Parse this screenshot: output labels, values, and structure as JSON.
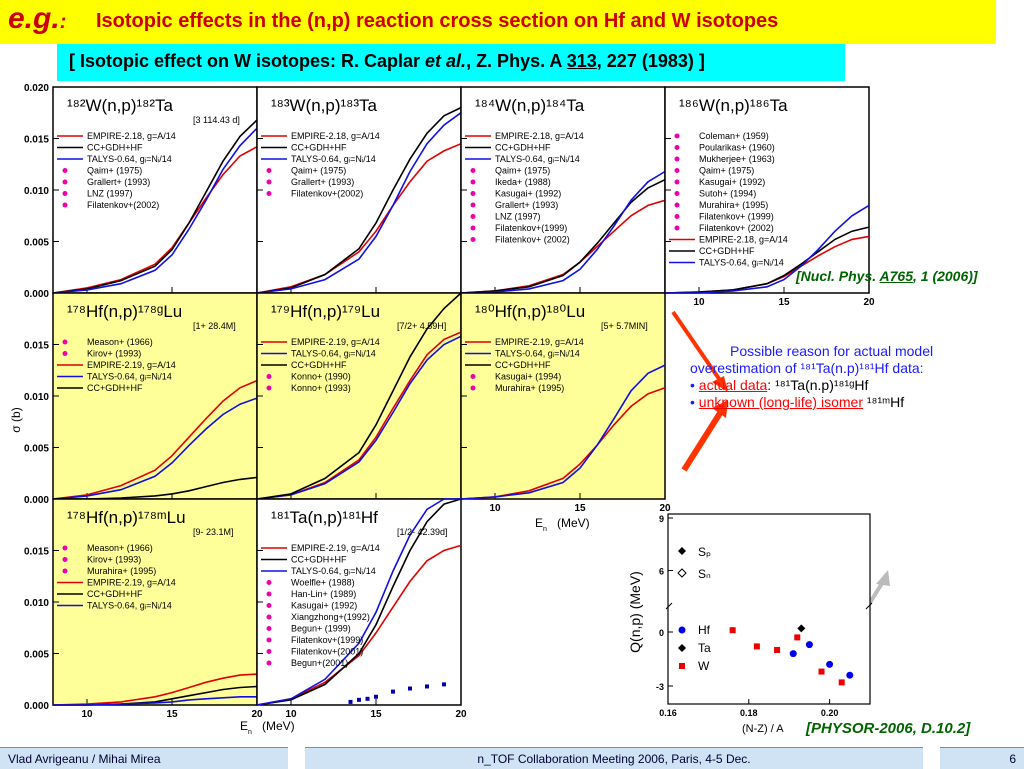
{
  "title": {
    "prefix": "e.g.",
    "colon": ":",
    "text": "Isotopic effects in the (n,p) reaction cross section on Hf and W isotopes"
  },
  "subtitle": {
    "pre": "[ Isotopic effect on W isotopes: R. Caplar ",
    "italic": "et al.",
    "mid": ", Z. Phys. A ",
    "vol": "313",
    "post": ", 227 (1983) ]"
  },
  "notes": {
    "nucl_pre": "[",
    "nucl_mid": "Nucl. Phys. ",
    "nucl_vol": "A765",
    "nucl_post": ", 1 (2006)]",
    "physor": "[PHYSOR-2006, D.10.2]"
  },
  "explanation": {
    "line1": "Possible reason for actual model",
    "line2": "overestimation of ¹⁸¹Ta(n.p)¹⁸¹Hf data:",
    "bullet1_red": "actual data",
    "bullet1_rest": ": ¹⁸¹Ta(n.p)¹⁸¹ᵍHf",
    "bullet2_red": "unknown (long-life) isomer",
    "bullet2_rest": " ¹⁸¹ᵐHf"
  },
  "footer": {
    "left": "Vlad Avrigeanu / Mihai Mirea",
    "center": "n_TOF Collaboration Meeting 2006, Paris, 4-5 Dec.",
    "page": "6"
  },
  "colors": {
    "empire": "#e00000",
    "cc": "#000000",
    "talys": "#1010e0",
    "yellow_panel": "#ffff99",
    "arrow_red": "#ff3300",
    "arrow_gray": "#bbbbbb"
  },
  "axes": {
    "y_ticks": [
      "0.000",
      "0.005",
      "0.010",
      "0.015",
      "0.020"
    ],
    "x_ticks": [
      "10",
      "15",
      "20"
    ],
    "xlabel": "E",
    "xlabel_sub": "n",
    "xlabel_unit": "(MeV)",
    "ylabel": "σ  (b)"
  },
  "chart_data": [
    {
      "type": "line",
      "id": "W182",
      "title": "¹⁸²W(n,p)¹⁸²Ta",
      "halflife": "[3    114.43 d]",
      "x_range": [
        8,
        20
      ],
      "y_range": [
        0,
        0.02
      ],
      "legend": [
        "EMPIRE-2.18, g=A/14",
        "CC+GDH+HF",
        "TALYS-0.64, gᵢ=Nᵢ/14",
        "Qaim+ (1975)",
        "Grallert+ (1993)",
        "LNZ (1997)",
        "Filatenkov+(2002)"
      ],
      "series": [
        {
          "name": "EMPIRE-2.18, g=A/14",
          "x": [
            8,
            10,
            12,
            14,
            15,
            16,
            17,
            18,
            19,
            20
          ],
          "y": [
            0,
            0.0005,
            0.0013,
            0.0028,
            0.0044,
            0.0068,
            0.0092,
            0.0115,
            0.0133,
            0.0142
          ]
        },
        {
          "name": "CC+GDH+HF",
          "x": [
            8,
            10,
            12,
            14,
            15,
            16,
            17,
            18,
            19,
            20
          ],
          "y": [
            0,
            0.0004,
            0.0012,
            0.0026,
            0.0042,
            0.0068,
            0.0098,
            0.0128,
            0.0152,
            0.0168
          ]
        },
        {
          "name": "TALYS-0.64, gᵢ=Nᵢ/14",
          "x": [
            8,
            10,
            12,
            14,
            15,
            16,
            17,
            18,
            19,
            20
          ],
          "y": [
            0,
            0.0003,
            0.0009,
            0.0022,
            0.0037,
            0.0062,
            0.009,
            0.012,
            0.0143,
            0.016
          ]
        }
      ]
    },
    {
      "type": "line",
      "id": "W183",
      "title": "¹⁸³W(n,p)¹⁸³Ta",
      "x_range": [
        8,
        20
      ],
      "y_range": [
        0,
        0.02
      ],
      "legend": [
        "EMPIRE-2.18, g=A/14",
        "CC+GDH+HF",
        "TALYS-0.64, gᵢ=Nᵢ/14",
        "Qaim+ (1975)",
        "Grallert+ (1993)",
        "Filatenkov+(2002)"
      ],
      "series": [
        {
          "name": "EMPIRE-2.18, g=A/14",
          "x": [
            8,
            10,
            12,
            14,
            15,
            16,
            17,
            18,
            19,
            20
          ],
          "y": [
            0,
            0.0006,
            0.0018,
            0.004,
            0.006,
            0.0085,
            0.0108,
            0.0128,
            0.0138,
            0.0145
          ]
        },
        {
          "name": "CC+GDH+HF",
          "x": [
            8,
            10,
            12,
            14,
            15,
            16,
            17,
            18,
            19,
            20
          ],
          "y": [
            0,
            0.0005,
            0.0018,
            0.0043,
            0.0068,
            0.01,
            0.013,
            0.0155,
            0.0172,
            0.018
          ]
        },
        {
          "name": "TALYS-0.64, gᵢ=Nᵢ/14",
          "x": [
            8,
            10,
            12,
            14,
            15,
            16,
            17,
            18,
            19,
            20
          ],
          "y": [
            0,
            0.0004,
            0.0013,
            0.0033,
            0.0055,
            0.0085,
            0.0118,
            0.0145,
            0.0163,
            0.0175
          ]
        }
      ]
    },
    {
      "type": "line",
      "id": "W184",
      "title": "¹⁸⁴W(n,p)¹⁸⁴Ta",
      "x_range": [
        8,
        20
      ],
      "y_range": [
        0,
        0.02
      ],
      "legend": [
        "EMPIRE-2.18, g=A/14",
        "CC+GDH+HF",
        "TALYS-0.64, gᵢ=Nᵢ/14",
        "Qaim+ (1975)",
        "Ikeda+ (1988)",
        "Kasugai+ (1992)",
        "Grallert+ (1993)",
        "LNZ (1997)",
        "Filatenkov+(1999)",
        "Filatenkov+ (2002)"
      ],
      "series": [
        {
          "name": "EMPIRE-2.18, g=A/14",
          "x": [
            8,
            10,
            12,
            14,
            15,
            16,
            17,
            18,
            19,
            20
          ],
          "y": [
            0,
            0.0002,
            0.0007,
            0.0018,
            0.003,
            0.0045,
            0.006,
            0.0075,
            0.0085,
            0.009
          ]
        },
        {
          "name": "CC+GDH+HF",
          "x": [
            8,
            10,
            12,
            14,
            15,
            16,
            17,
            18,
            19,
            20
          ],
          "y": [
            0,
            0.0002,
            0.0006,
            0.0017,
            0.003,
            0.0048,
            0.0068,
            0.0088,
            0.0102,
            0.011
          ]
        },
        {
          "name": "TALYS-0.64, gᵢ=Nᵢ/14",
          "x": [
            8,
            10,
            12,
            14,
            15,
            16,
            17,
            18,
            19,
            20
          ],
          "y": [
            0,
            0.0001,
            0.0004,
            0.0012,
            0.0023,
            0.0042,
            0.0065,
            0.009,
            0.0108,
            0.0118
          ]
        }
      ]
    },
    {
      "type": "line",
      "id": "W186",
      "title": "¹⁸⁶W(n,p)¹⁸⁶Ta",
      "x_range": [
        8,
        20
      ],
      "y_range": [
        0,
        0.02
      ],
      "legend": [
        "Coleman+ (1959)",
        "Poularikas+ (1960)",
        "Mukherjee+ (1963)",
        "Qaim+ (1975)",
        "Kasugai+ (1992)",
        "Sutoh+ (1994)",
        "Murahira+ (1995)",
        "Filatenkov+ (1999)",
        "Filatenkov+ (2002)",
        "EMPIRE-2.18, g=A/14",
        "CC+GDH+HF",
        "TALYS-0.64, gᵢ=Nᵢ/14"
      ],
      "series": [
        {
          "name": "EMPIRE-2.18, g=A/14",
          "x": [
            8,
            10,
            12,
            14,
            15,
            16,
            17,
            18,
            19,
            20
          ],
          "y": [
            0,
            0.0001,
            0.0003,
            0.0009,
            0.0016,
            0.0026,
            0.0036,
            0.0045,
            0.0052,
            0.0055
          ]
        },
        {
          "name": "CC+GDH+HF",
          "x": [
            8,
            10,
            12,
            14,
            15,
            16,
            17,
            18,
            19,
            20
          ],
          "y": [
            0,
            0.0001,
            0.0003,
            0.0009,
            0.0017,
            0.0028,
            0.004,
            0.0052,
            0.006,
            0.0064
          ]
        },
        {
          "name": "TALYS-0.64, gᵢ=Nᵢ/14",
          "x": [
            8,
            10,
            12,
            14,
            15,
            16,
            17,
            18,
            19,
            20
          ],
          "y": [
            0,
            0.0,
            0.0002,
            0.0006,
            0.0013,
            0.0026,
            0.0042,
            0.006,
            0.0075,
            0.0085
          ]
        }
      ]
    },
    {
      "type": "line",
      "id": "Hf178g",
      "title": "¹⁷⁸Hf(n,p)¹⁷⁸ᵍLu",
      "halflife": "[1+  28.4M]",
      "x_range": [
        8,
        20
      ],
      "y_range": [
        0,
        0.02
      ],
      "legend": [
        "Meason+ (1966)",
        "Kirov+ (1993)",
        "EMPIRE-2.19, g=A/14",
        "TALYS-0.64, gᵢ=Nᵢ/14",
        "CC+GDH+HF"
      ],
      "series": [
        {
          "name": "EMPIRE-2.19, g=A/14",
          "x": [
            8,
            10,
            12,
            14,
            15,
            16,
            17,
            18,
            19,
            20
          ],
          "y": [
            0,
            0.0004,
            0.0013,
            0.0028,
            0.0042,
            0.006,
            0.0078,
            0.0095,
            0.0108,
            0.0115
          ]
        },
        {
          "name": "TALYS-0.64, gᵢ=Nᵢ/14",
          "x": [
            8,
            10,
            12,
            14,
            15,
            16,
            17,
            18,
            19,
            20
          ],
          "y": [
            0,
            0.0003,
            0.0009,
            0.0022,
            0.0035,
            0.0052,
            0.0068,
            0.0082,
            0.0092,
            0.0098
          ]
        },
        {
          "name": "CC+GDH+HF",
          "x": [
            8,
            10,
            12,
            14,
            15,
            16,
            17,
            18,
            19,
            20
          ],
          "y": [
            0,
            0.0,
            0.0001,
            0.0003,
            0.0005,
            0.0008,
            0.0012,
            0.0016,
            0.0019,
            0.0021
          ]
        }
      ]
    },
    {
      "type": "line",
      "id": "Hf179",
      "title": "¹⁷⁹Hf(n,p)¹⁷⁹Lu",
      "halflife": "[7/2+  4.59H]",
      "x_range": [
        8,
        20
      ],
      "y_range": [
        0,
        0.02
      ],
      "legend": [
        "EMPIRE-2.19, g=A/14",
        "TALYS-0.64, gᵢ=Nᵢ/14",
        "CC+GDH+HF",
        "Konno+ (1990)",
        "Konno+ (1993)"
      ],
      "series": [
        {
          "name": "EMPIRE-2.19, g=A/14",
          "x": [
            8,
            10,
            12,
            14,
            15,
            16,
            17,
            18,
            19,
            20
          ],
          "y": [
            0,
            0.0004,
            0.0016,
            0.0038,
            0.006,
            0.0088,
            0.0115,
            0.014,
            0.0155,
            0.0162
          ]
        },
        {
          "name": "TALYS-0.64, gᵢ=Nᵢ/14",
          "x": [
            8,
            10,
            12,
            14,
            15,
            16,
            17,
            18,
            19,
            20
          ],
          "y": [
            0,
            0.0004,
            0.0015,
            0.0036,
            0.0057,
            0.0084,
            0.0112,
            0.0135,
            0.015,
            0.0158
          ]
        },
        {
          "name": "CC+GDH+HF",
          "x": [
            8,
            10,
            12,
            14,
            15,
            16,
            17,
            18,
            19,
            20
          ],
          "y": [
            0,
            0.0005,
            0.002,
            0.0045,
            0.0072,
            0.0105,
            0.0138,
            0.0165,
            0.0185,
            0.02
          ]
        }
      ]
    },
    {
      "type": "line",
      "id": "Hf180",
      "title": "¹⁸⁰Hf(n,p)¹⁸⁰Lu",
      "halflife": "[5+   5.7MIN]",
      "x_range": [
        8,
        20
      ],
      "y_range": [
        0,
        0.02
      ],
      "legend": [
        "EMPIRE-2.19, g=A/14",
        "TALYS-0.64, gᵢ=Nᵢ/14",
        "CC+GDH+HF",
        "Kasugai+ (1994)",
        "Murahira+ (1995)"
      ],
      "series": [
        {
          "name": "EMPIRE-2.19, g=A/14",
          "x": [
            8,
            10,
            12,
            14,
            15,
            16,
            17,
            18,
            19,
            20
          ],
          "y": [
            0,
            0.0002,
            0.0008,
            0.002,
            0.0034,
            0.0052,
            0.0072,
            0.009,
            0.0102,
            0.0108
          ]
        },
        {
          "name": "TALYS-0.64, gᵢ=Nᵢ/14",
          "x": [
            8,
            10,
            12,
            14,
            15,
            16,
            17,
            18,
            19,
            20
          ],
          "y": [
            0,
            0.0002,
            0.0006,
            0.0016,
            0.003,
            0.0052,
            0.0078,
            0.0105,
            0.0122,
            0.013
          ]
        }
      ]
    },
    {
      "type": "line",
      "id": "Hf178m",
      "title": "¹⁷⁸Hf(n,p)¹⁷⁸ᵐLu",
      "halflife": "[9-  23.1M]",
      "x_range": [
        8,
        20
      ],
      "y_range": [
        0,
        0.02
      ],
      "legend": [
        "Meason+ (1966)",
        "Kirov+ (1993)",
        "Murahira+ (1995)",
        "EMPIRE-2.19, g=A/14",
        "CC+GDH+HF",
        "TALYS-0.64, gᵢ=Nᵢ/14"
      ],
      "series": [
        {
          "name": "EMPIRE-2.19, g=A/14",
          "x": [
            8,
            10,
            12,
            14,
            15,
            16,
            17,
            18,
            19,
            20
          ],
          "y": [
            0,
            0.0001,
            0.0003,
            0.0008,
            0.0012,
            0.0017,
            0.0022,
            0.0026,
            0.0029,
            0.003
          ]
        },
        {
          "name": "CC+GDH+HF",
          "x": [
            8,
            10,
            12,
            14,
            15,
            16,
            17,
            18,
            19,
            20
          ],
          "y": [
            0,
            0.0,
            0.0001,
            0.0003,
            0.0006,
            0.0009,
            0.0012,
            0.0015,
            0.0017,
            0.0018
          ]
        },
        {
          "name": "TALYS-0.64, gᵢ=Nᵢ/14",
          "x": [
            8,
            10,
            12,
            14,
            15,
            16,
            17,
            18,
            19,
            20
          ],
          "y": [
            0,
            0.0,
            0.0001,
            0.0002,
            0.0003,
            0.0005,
            0.0006,
            0.0007,
            0.0008,
            0.0008
          ]
        }
      ]
    },
    {
      "type": "line",
      "id": "Ta181",
      "title": "¹⁸¹Ta(n,p)¹⁸¹Hf",
      "halflife": "[1/2-  42.39d]",
      "x_range": [
        8,
        20
      ],
      "y_range": [
        0,
        0.02
      ],
      "legend": [
        "EMPIRE-2.19, g=A/14",
        "CC+GDH+HF",
        "TALYS-0.64, gᵢ=Nᵢ/14",
        "Woelfle+ (1988)",
        "Han-Lin+ (1989)",
        "Kasugai+ (1992)",
        "Xiangzhong+(1992)",
        "Begun+ (1999)",
        "Filatenkov+(1999)",
        "Filatenkov+(2001)",
        "Begun+(2001)"
      ],
      "series": [
        {
          "name": "EMPIRE-2.19, g=A/14",
          "x": [
            8,
            10,
            12,
            14,
            15,
            16,
            17,
            18,
            19,
            20
          ],
          "y": [
            0,
            0.0006,
            0.0022,
            0.0048,
            0.007,
            0.0095,
            0.012,
            0.014,
            0.015,
            0.0155
          ]
        },
        {
          "name": "CC+GDH+HF",
          "x": [
            8,
            10,
            12,
            14,
            15,
            16,
            17,
            18,
            19,
            20
          ],
          "y": [
            0,
            0.0005,
            0.002,
            0.005,
            0.0078,
            0.0115,
            0.015,
            0.0178,
            0.0195,
            0.02
          ]
        },
        {
          "name": "TALYS-0.64, gᵢ=Nᵢ/14",
          "x": [
            8,
            10,
            12,
            14,
            15,
            16,
            17,
            18,
            19,
            20
          ],
          "y": [
            0,
            0.0006,
            0.0025,
            0.006,
            0.009,
            0.013,
            0.0165,
            0.019,
            0.02,
            0.02
          ]
        },
        {
          "name": "Woelfle+ (1988)",
          "x": [
            13.5,
            14.0,
            14.5,
            15.0,
            16.0,
            17.0,
            18.0,
            19.0
          ],
          "y": [
            0.0003,
            0.0005,
            0.0006,
            0.0008,
            0.0013,
            0.0016,
            0.0018,
            0.002
          ]
        }
      ]
    },
    {
      "type": "scatter",
      "id": "Qnp",
      "xlabel": "(N-Z) / A",
      "ylabel": "Q(n,p) (MeV)",
      "x_range": [
        0.16,
        0.21
      ],
      "y_ticks": [
        "-3",
        "0",
        "6",
        "9"
      ],
      "x_ticks": [
        "0.16",
        "0.18",
        "0.20"
      ],
      "legend": [
        "Sₚ",
        "Sₙ",
        "Hf",
        "Ta",
        "W"
      ],
      "series": [
        {
          "name": "Hf",
          "x": [
            0.191,
            0.195,
            0.2,
            0.205
          ],
          "y": [
            -1.2,
            -0.7,
            -1.8,
            -2.4
          ]
        },
        {
          "name": "Ta",
          "x": [
            0.193
          ],
          "y": [
            0.2
          ]
        },
        {
          "name": "W",
          "x": [
            0.176,
            0.182,
            0.187,
            0.192,
            0.198,
            0.203
          ],
          "y": [
            0.1,
            -0.8,
            -1.0,
            -0.3,
            -2.2,
            -2.8
          ]
        }
      ]
    }
  ]
}
